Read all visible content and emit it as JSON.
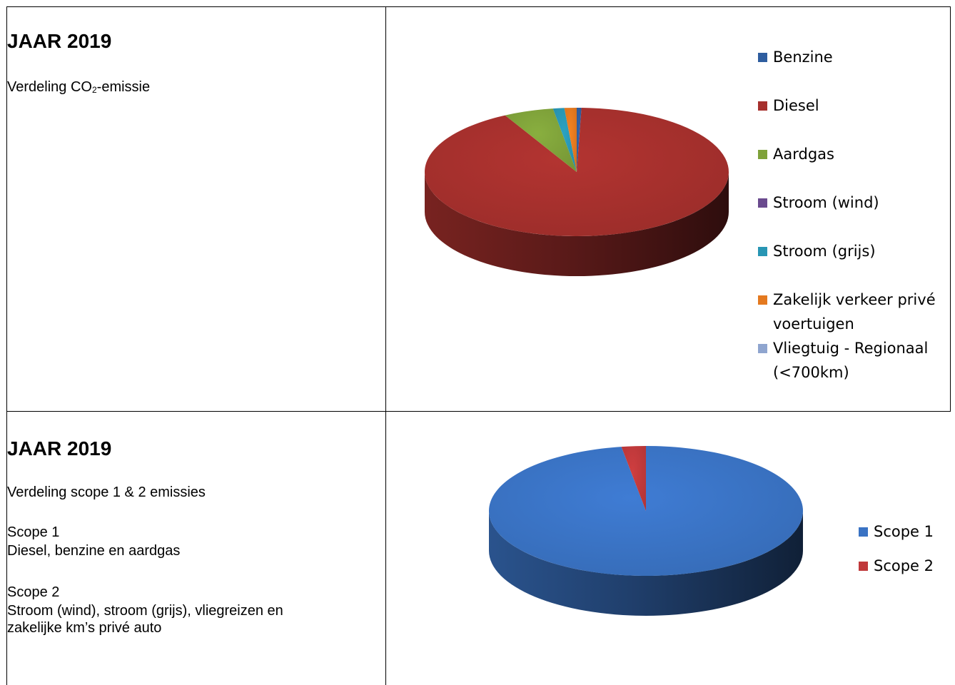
{
  "section1": {
    "title": "JAAR 2019",
    "subtitle_prefix": "Verdeling CO",
    "subtitle_sub": "2",
    "subtitle_suffix": "-emissie"
  },
  "section2": {
    "title": "JAAR 2019",
    "subtitle": "Verdeling scope 1 & 2 emissies",
    "scope1_heading": "Scope 1",
    "scope1_desc": "Diesel, benzine en aardgas",
    "scope2_heading": "Scope 2",
    "scope2_desc_line1": "Stroom (wind), stroom (grijs), vliegreizen en",
    "scope2_desc_line2": "zakelijke km’s privé auto"
  },
  "chart_data": [
    {
      "type": "pie",
      "style": "3d",
      "legend_position": "right",
      "categories": [
        "Benzine",
        "Diesel",
        "Aardgas",
        "Stroom (wind)",
        "Stroom (grijs)",
        "Zakelijk verkeer privé voertuigen",
        "Vliegtuig - Regionaal (<700km)"
      ],
      "values": [
        0.5,
        91.7,
        5.3,
        0.0,
        1.2,
        1.3,
        0.0
      ],
      "colors": [
        "#2E5D9F",
        "#A6302D",
        "#7FA23A",
        "#6A4A8E",
        "#2896B4",
        "#E4791F",
        "#8FA5CF"
      ]
    },
    {
      "type": "pie",
      "style": "3d",
      "legend_position": "right",
      "categories": [
        "Scope 1",
        "Scope 2"
      ],
      "values": [
        97.5,
        2.5
      ],
      "colors": [
        "#3A73C4",
        "#C0393B"
      ]
    }
  ]
}
